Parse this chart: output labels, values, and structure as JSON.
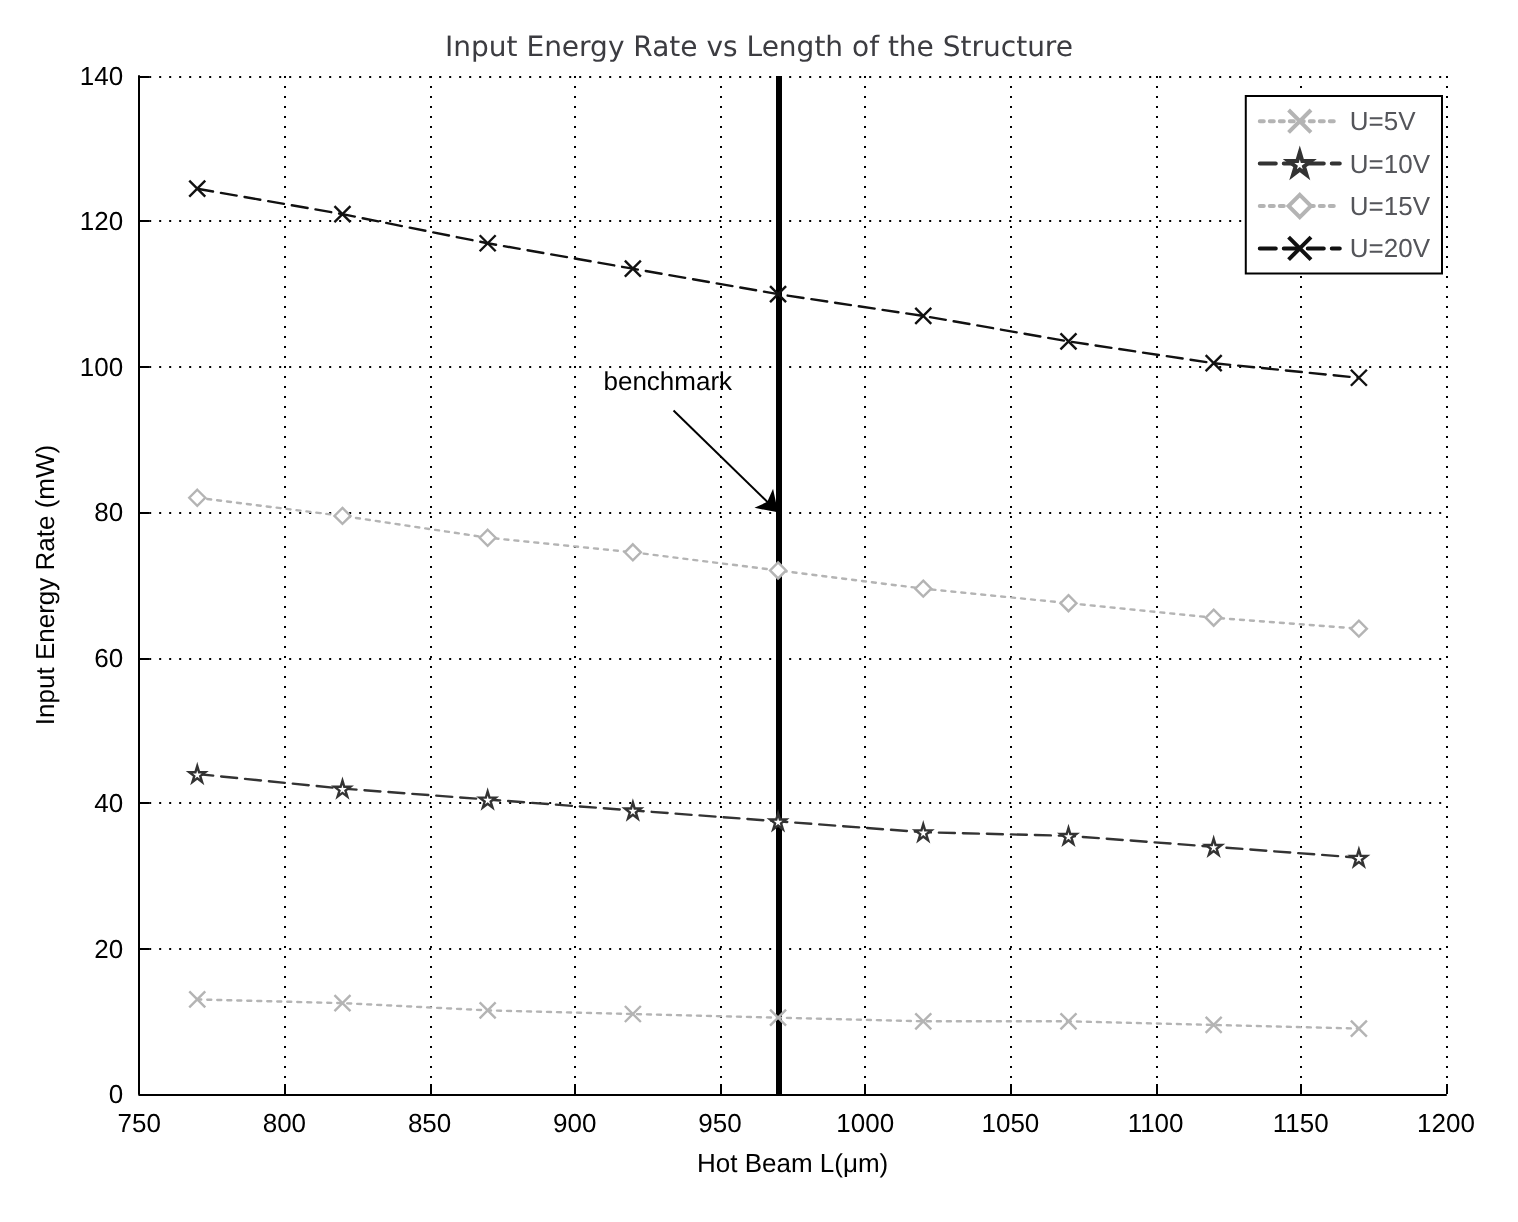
{
  "chart_data": {
    "type": "line",
    "title": "Input Energy Rate vs Length of the Structure",
    "xlabel": "Hot Beam L(μm)",
    "ylabel": "Input Energy Rate (mW)",
    "x": [
      770,
      820,
      870,
      920,
      970,
      1020,
      1070,
      1120,
      1170
    ],
    "series": [
      {
        "name": "U=5V",
        "color": "#b4b4b4",
        "marker": "cross",
        "line_style": "dotted",
        "values": [
          13,
          12.5,
          11.5,
          11,
          10.5,
          10,
          10,
          9.5,
          9
        ]
      },
      {
        "name": "U=10V",
        "color": "#333333",
        "marker": "star",
        "line_style": "dashed",
        "values": [
          44,
          42,
          40.5,
          39,
          37.5,
          36,
          35.5,
          34,
          32.5
        ]
      },
      {
        "name": "U=15V",
        "color": "#b4b4b4",
        "marker": "diamond",
        "line_style": "dotted",
        "values": [
          82,
          79.5,
          76.5,
          74.5,
          72,
          69.5,
          67.5,
          65.5,
          64
        ]
      },
      {
        "name": "U=20V",
        "color": "#111111",
        "marker": "cross",
        "line_style": "dashed",
        "values": [
          124.5,
          121,
          117,
          113.5,
          110,
          107,
          103.5,
          100.5,
          98.5
        ]
      }
    ],
    "xlim": [
      750,
      1200
    ],
    "xticks": [
      750,
      800,
      850,
      900,
      950,
      1000,
      1050,
      1100,
      1150,
      1200
    ],
    "ylim": [
      0,
      140
    ],
    "yticks": [
      0,
      20,
      40,
      60,
      80,
      100,
      120,
      140
    ],
    "ref_lines": [
      {
        "axis": "x",
        "value": 970,
        "color": "#000000",
        "line_style": "solid"
      }
    ],
    "annotations": [
      {
        "text": "benchmark",
        "x": 970,
        "y": 80
      }
    ],
    "grid": true,
    "legend": "top right"
  }
}
